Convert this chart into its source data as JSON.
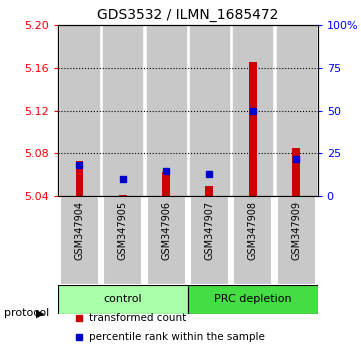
{
  "title": "GDS3532 / ILMN_1685472",
  "samples": [
    "GSM347904",
    "GSM347905",
    "GSM347906",
    "GSM347907",
    "GSM347908",
    "GSM347909"
  ],
  "red_values": [
    5.073,
    5.041,
    5.063,
    5.05,
    5.165,
    5.085
  ],
  "blue_values": [
    18,
    10,
    15,
    13,
    50,
    22
  ],
  "baseline": 5.04,
  "ylim_left": [
    5.04,
    5.2
  ],
  "ylim_right": [
    0,
    100
  ],
  "yticks_left": [
    5.04,
    5.08,
    5.12,
    5.16,
    5.2
  ],
  "yticks_right": [
    0,
    25,
    50,
    75,
    100
  ],
  "ytick_labels_right": [
    "0",
    "25",
    "50",
    "75",
    "100%"
  ],
  "gridlines": [
    5.08,
    5.12,
    5.16
  ],
  "protocols": [
    {
      "label": "control",
      "start": 0,
      "end": 3,
      "color": "#aaffaa"
    },
    {
      "label": "PRC depletion",
      "start": 3,
      "end": 6,
      "color": "#44dd44"
    }
  ],
  "bar_color": "#CC0000",
  "marker_color": "#0000CC",
  "col_bg_color": "#C8C8C8",
  "protocol_label": "protocol",
  "legend_red": "transformed count",
  "legend_blue": "percentile rank within the sample"
}
